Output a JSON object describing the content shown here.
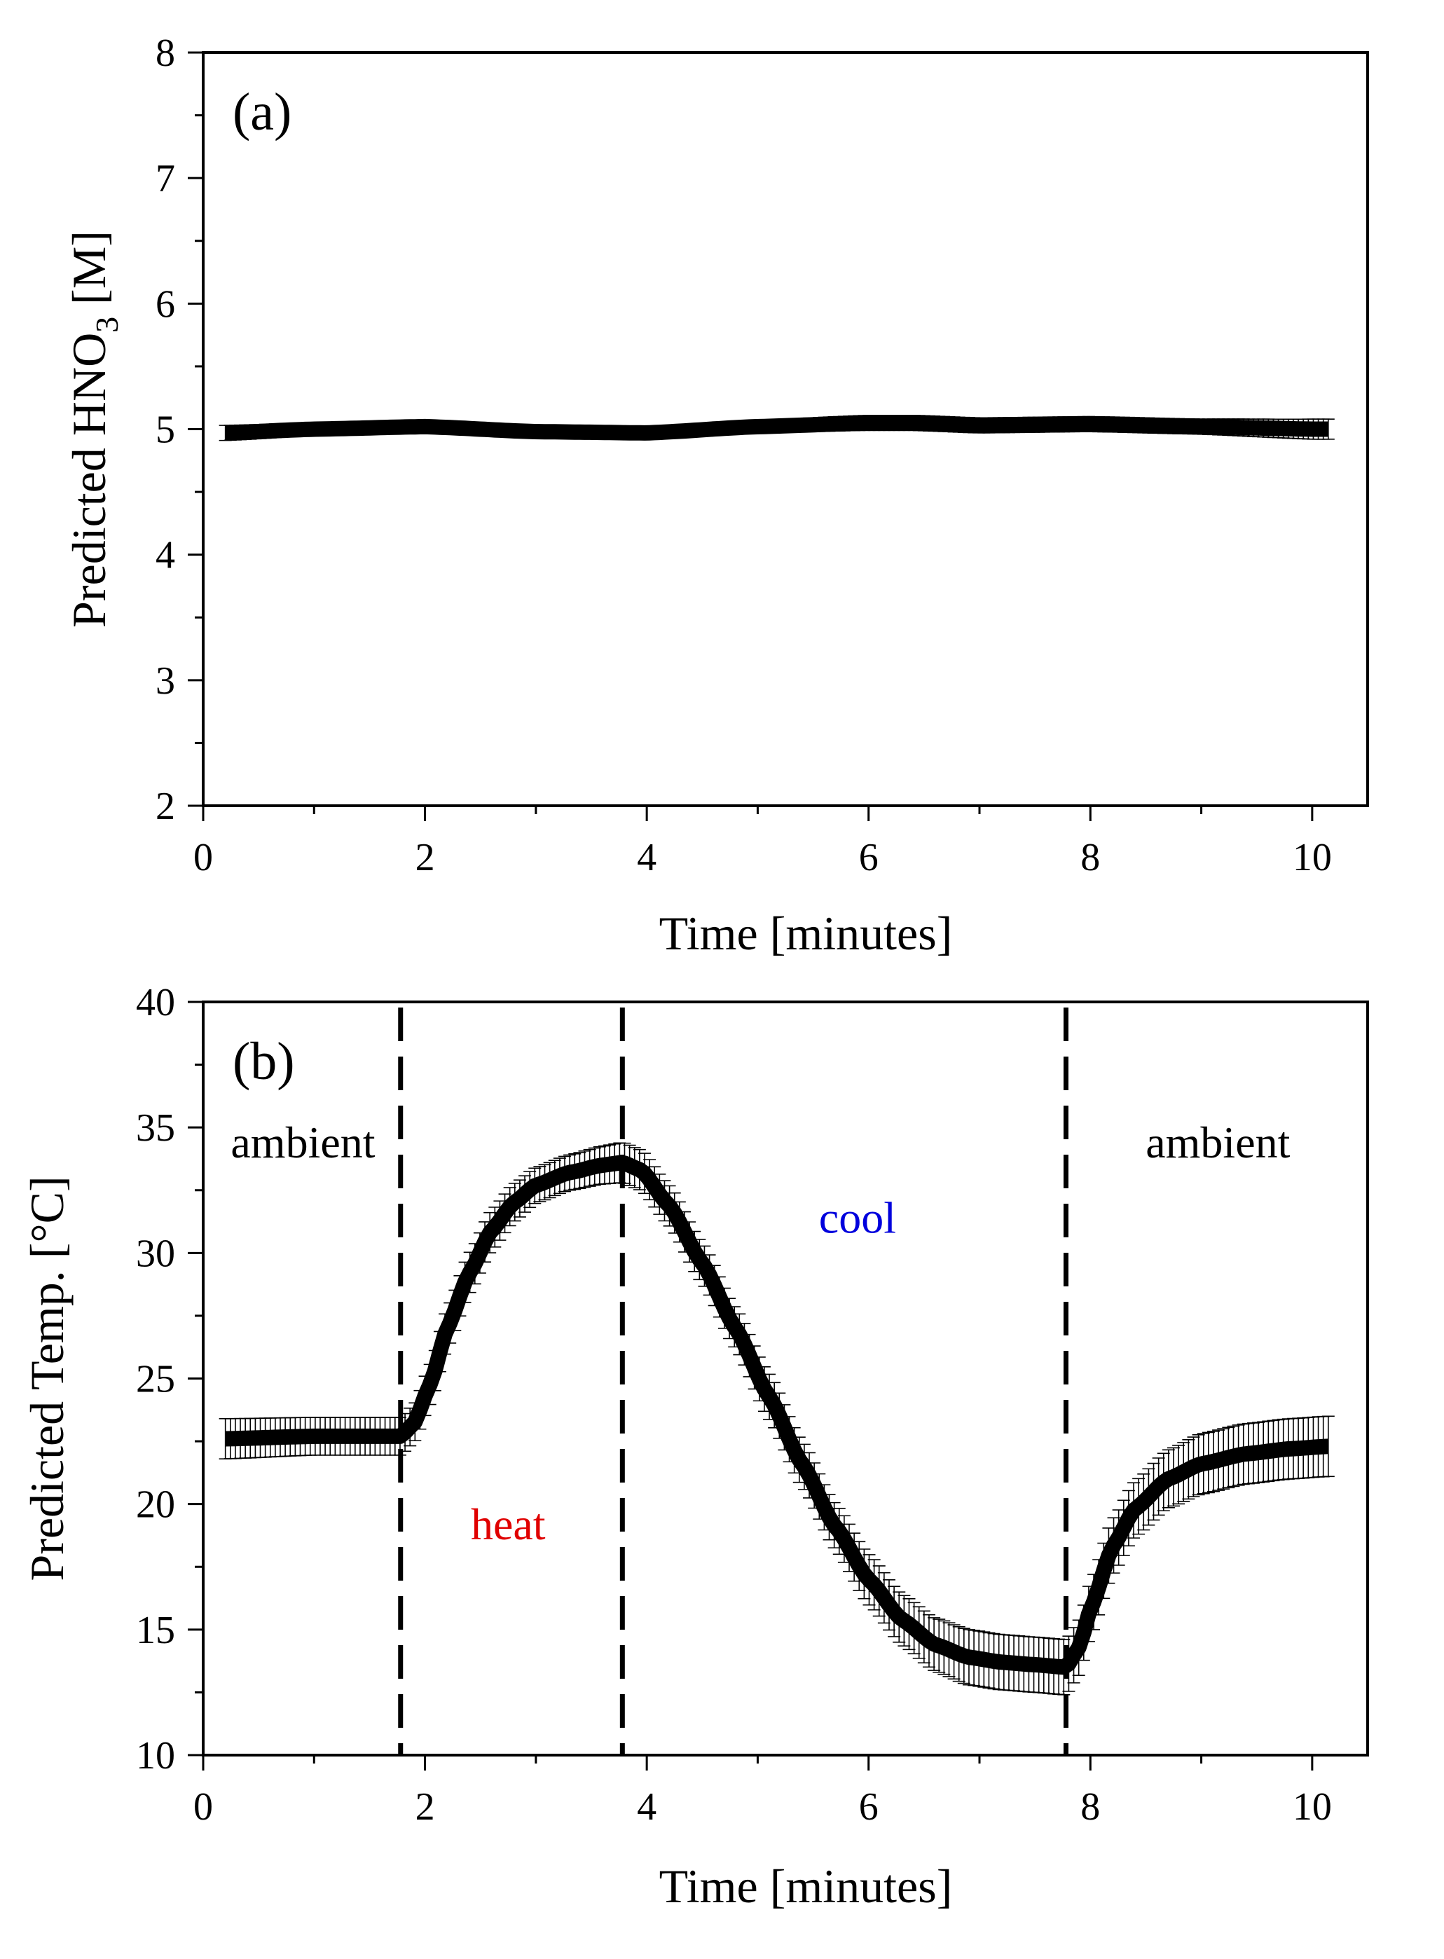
{
  "chart_data": [
    {
      "type": "line",
      "panel_label": "(a)",
      "xlabel": "Time [minutes]",
      "ylabel_main": "Predicted HNO",
      "ylabel_sub": "3",
      "ylabel_unit": " [M]",
      "xlim": [
        0,
        10.5
      ],
      "ylim": [
        2,
        8
      ],
      "x_ticks": [
        0,
        2,
        4,
        6,
        8,
        10
      ],
      "y_ticks": [
        2,
        3,
        4,
        5,
        6,
        7,
        8
      ],
      "x_tick_labels": [
        "0",
        "2",
        "4",
        "6",
        "8",
        "10"
      ],
      "y_tick_labels": [
        "2",
        "3",
        "4",
        "5",
        "6",
        "7",
        "8"
      ],
      "series": [
        {
          "name": "Predicted HNO3",
          "x": [
            0.2,
            1.0,
            2.0,
            3.0,
            4.0,
            5.0,
            6.0,
            6.4,
            7.0,
            8.0,
            9.0,
            10.0,
            10.15
          ],
          "y": [
            4.97,
            5.0,
            5.02,
            4.98,
            4.97,
            5.02,
            5.05,
            5.05,
            5.03,
            5.04,
            5.02,
            5.0,
            5.0
          ],
          "err": [
            0.06,
            0.05,
            0.05,
            0.05,
            0.05,
            0.05,
            0.06,
            0.06,
            0.06,
            0.06,
            0.06,
            0.08,
            0.08
          ]
        }
      ]
    },
    {
      "type": "line",
      "panel_label": "(b)",
      "xlabel": "Time [minutes]",
      "ylabel": "Predicted Temp. [°C]",
      "xlim": [
        0,
        10.5
      ],
      "ylim": [
        10,
        40
      ],
      "x_ticks": [
        0,
        2,
        4,
        6,
        8,
        10
      ],
      "y_ticks": [
        10,
        15,
        20,
        25,
        30,
        35,
        40
      ],
      "x_tick_labels": [
        "0",
        "2",
        "4",
        "6",
        "8",
        "10"
      ],
      "y_tick_labels": [
        "10",
        "15",
        "20",
        "25",
        "30",
        "35",
        "40"
      ],
      "vertical_lines": [
        1.78,
        3.78,
        7.78
      ],
      "annotations": [
        {
          "text": "ambient",
          "x": 0.9,
          "y": 33.8,
          "color": "#000000"
        },
        {
          "text": "heat",
          "x": 2.75,
          "y": 18.6,
          "color": "#e00000"
        },
        {
          "text": "cool",
          "x": 5.9,
          "y": 30.8,
          "color": "#0000dd"
        },
        {
          "text": "ambient",
          "x": 9.15,
          "y": 33.8,
          "color": "#000000"
        }
      ],
      "series": [
        {
          "name": "Predicted Temp.",
          "x": [
            0.2,
            1.0,
            1.6,
            1.78,
            1.9,
            2.05,
            2.2,
            2.4,
            2.6,
            2.8,
            3.0,
            3.3,
            3.6,
            3.78,
            3.95,
            4.2,
            4.5,
            4.8,
            5.1,
            5.4,
            5.7,
            6.0,
            6.3,
            6.6,
            6.9,
            7.2,
            7.5,
            7.78,
            7.9,
            8.0,
            8.2,
            8.4,
            8.7,
            9.0,
            9.4,
            9.8,
            10.15
          ],
          "y": [
            22.6,
            22.7,
            22.7,
            22.7,
            23.2,
            24.8,
            27.0,
            29.2,
            30.9,
            32.0,
            32.7,
            33.2,
            33.5,
            33.6,
            33.3,
            31.9,
            29.6,
            27.0,
            24.3,
            21.6,
            19.1,
            17.0,
            15.4,
            14.4,
            13.9,
            13.7,
            13.6,
            13.5,
            14.3,
            15.8,
            18.3,
            19.8,
            21.0,
            21.6,
            22.0,
            22.2,
            22.3
          ],
          "err": [
            0.8,
            0.75,
            0.75,
            0.75,
            0.75,
            0.8,
            0.8,
            0.8,
            0.8,
            0.75,
            0.7,
            0.7,
            0.75,
            0.8,
            0.8,
            0.8,
            0.8,
            0.8,
            0.9,
            0.9,
            0.9,
            1.0,
            1.0,
            1.05,
            1.1,
            1.1,
            1.1,
            1.1,
            1.1,
            1.1,
            1.1,
            1.1,
            1.15,
            1.2,
            1.2,
            1.2,
            1.2
          ]
        }
      ]
    }
  ]
}
